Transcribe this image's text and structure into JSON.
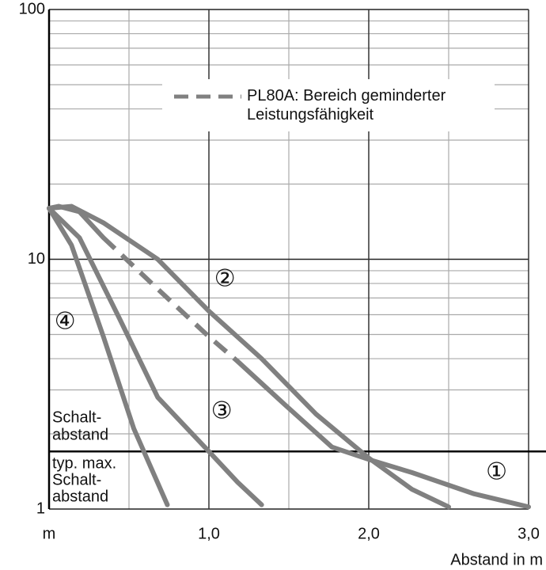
{
  "chart_data": {
    "type": "line",
    "ylog": true,
    "xlabel": "Abstand in m",
    "xlim": [
      0,
      3.0
    ],
    "ylim": [
      1,
      100
    ],
    "xticks": [
      {
        "value": 0,
        "label": "m"
      },
      {
        "value": 1,
        "label": "1,0"
      },
      {
        "value": 2,
        "label": "2,0"
      },
      {
        "value": 3,
        "label": "3,0"
      }
    ],
    "xminor": [
      0.5,
      1.5,
      2.5
    ],
    "yticks": [
      1,
      10,
      100
    ],
    "yminor": [
      2,
      3,
      4,
      5,
      6,
      7,
      8,
      9,
      20,
      30,
      40,
      50,
      60,
      70,
      80,
      90
    ],
    "hline": 1.7,
    "annotations": {
      "above_line": [
        "Schalt-",
        "abstand"
      ],
      "below_line": [
        "typ. max.",
        "Schalt-",
        "abstand"
      ]
    },
    "series": [
      {
        "name": "PL80A: Bereich geminderter Leistungsfähigkeit",
        "color": "#808080",
        "dashed": true,
        "x": [
          0.34,
          0.68,
          1.0,
          1.18
        ],
        "values": [
          12.2,
          7.6,
          4.9,
          3.9
        ]
      },
      {
        "label": "①",
        "color": "#808080",
        "x": [
          0,
          0.06,
          0.19,
          0.34,
          0.68,
          1.0,
          1.18,
          1.48,
          1.77,
          2.0,
          2.27,
          2.66,
          3.0
        ],
        "values": [
          16,
          16.3,
          15.5,
          12.2,
          null,
          null,
          3.9,
          2.6,
          1.77,
          1.58,
          1.4,
          1.15,
          1.02
        ]
      },
      {
        "label": "②",
        "color": "#808080",
        "x": [
          0,
          0.14,
          0.34,
          0.68,
          1.0,
          1.33,
          1.67,
          2.0,
          2.27,
          2.5
        ],
        "values": [
          16,
          16.3,
          14,
          10,
          6.2,
          4.0,
          2.4,
          1.6,
          1.2,
          1.02
        ]
      },
      {
        "label": "③",
        "color": "#808080",
        "x": [
          0,
          0.19,
          0.44,
          0.68,
          1.0,
          1.18,
          1.33
        ],
        "values": [
          16,
          12.2,
          5.8,
          2.8,
          1.7,
          1.28,
          1.04
        ]
      },
      {
        "label": "④",
        "color": "#808080",
        "x": [
          0,
          0.14,
          0.34,
          0.53,
          0.74
        ],
        "values": [
          16,
          11.4,
          4.9,
          2.1,
          1.04
        ]
      }
    ]
  }
}
